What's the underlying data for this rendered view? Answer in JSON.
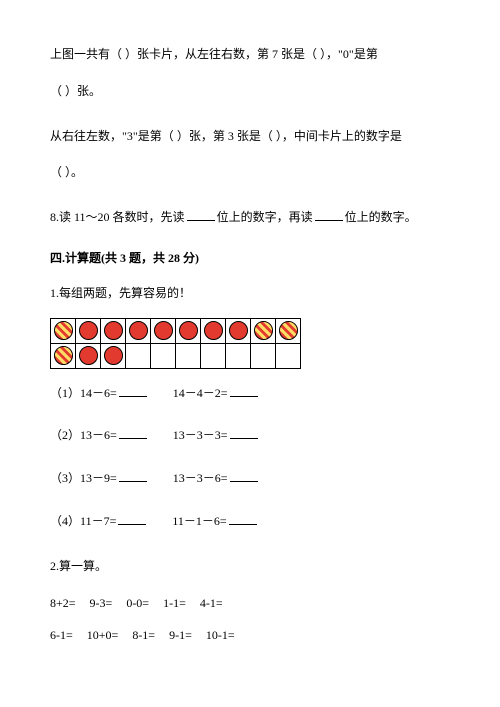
{
  "q_cards": {
    "line1a": "上图一共有（",
    "line1b": "）张卡片，从左往右数，第 7 张是（",
    "line1c": "），\"0\"是第",
    "line2a": "（",
    "line2b": "）张。",
    "line3a": "从右往左数，\"3\"是第（",
    "line3b": "）张，第 3 张是（",
    "line3c": "），中间卡片上的数字是",
    "line4a": "（",
    "line4b": "）。"
  },
  "q8": {
    "prefix": "8.读 11～20 各数时，先读",
    "mid": "位上的数字，再读",
    "suffix": "位上的数字。"
  },
  "section4": {
    "header": "四.计算题(共 3 题，共 28 分)",
    "q1_title": "1.每组两题，先算容易的！",
    "grid": {
      "rows": 2,
      "cols": 10,
      "pattern": [
        [
          "striped",
          "solid",
          "solid",
          "solid",
          "solid",
          "solid",
          "solid",
          "solid",
          "striped",
          "striped"
        ],
        [
          "striped",
          "solid",
          "solid",
          "empty",
          "empty",
          "empty",
          "empty",
          "empty",
          "empty",
          "empty"
        ]
      ],
      "colors": {
        "solid": "#e23a2e",
        "stripe_bg": "#e23a2e",
        "stripe_line": "#ffdc64",
        "border": "#000000"
      }
    },
    "eqs": [
      {
        "num": "（1）",
        "a": "14－6=",
        "b": "14－4－2="
      },
      {
        "num": "（2）",
        "a": "13－6=",
        "b": "13－3－3="
      },
      {
        "num": "（3）",
        "a": "13－9=",
        "b": "13－3－6="
      },
      {
        "num": "（4）",
        "a": "11－7=",
        "b": "11－1－6="
      }
    ],
    "q2_title": "2.算一算。",
    "calc": {
      "row1": [
        "8+2=",
        "9-3=",
        "0-0=",
        "1-1=",
        "4-1="
      ],
      "row2": [
        "6-1=",
        "10+0=",
        "8-1=",
        "9-1=",
        "10-1="
      ]
    }
  }
}
